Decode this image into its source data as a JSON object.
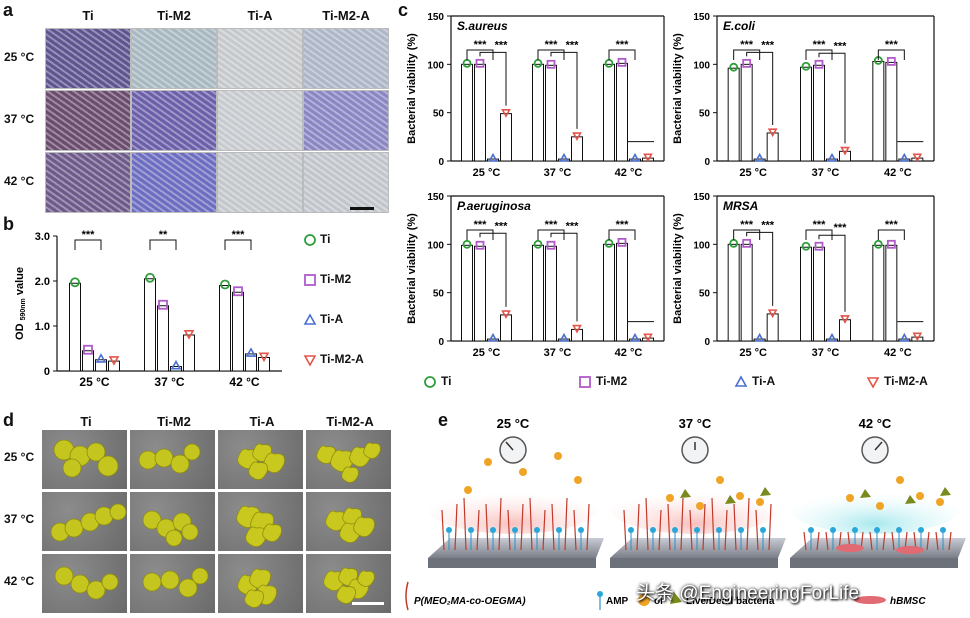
{
  "panels": {
    "a": "a",
    "b": "b",
    "c": "c",
    "d": "d",
    "e": "e"
  },
  "groups": [
    "Ti",
    "Ti-M2",
    "Ti-A",
    "Ti-M2-A"
  ],
  "temps": [
    "25 °C",
    "37 °C",
    "42 °C"
  ],
  "colors": {
    "Ti": "#2e9e3a",
    "Ti-M2": "#b15bc9",
    "Ti-A": "#4a6fd1",
    "Ti-M2-A": "#e2554a"
  },
  "chart_data": [
    {
      "id": "b",
      "type": "bar",
      "ylabel": "OD 590nm value",
      "ylim": [
        0,
        3
      ],
      "yticks": [
        "0",
        "1.0",
        "2.0",
        "3.0"
      ],
      "categories": [
        "25 °C",
        "37 °C",
        "42 °C"
      ],
      "series": [
        {
          "name": "Ti",
          "values": [
            1.95,
            2.05,
            1.9
          ]
        },
        {
          "name": "Ti-M2",
          "values": [
            0.45,
            1.45,
            1.75
          ]
        },
        {
          "name": "Ti-A",
          "values": [
            0.25,
            0.1,
            0.38
          ]
        },
        {
          "name": "Ti-M2-A",
          "values": [
            0.22,
            0.8,
            0.3
          ]
        }
      ],
      "sig": [
        "***",
        "**",
        "***",
        "***"
      ]
    },
    {
      "id": "c1",
      "title": "S.aureus",
      "type": "bar",
      "ylabel": "Bacterial viability (%)",
      "ylim": [
        0,
        150
      ],
      "yticks": [
        "0",
        "50",
        "100",
        "150"
      ],
      "categories": [
        "25 °C",
        "37 °C",
        "42 °C"
      ],
      "series": [
        {
          "name": "Ti",
          "values": [
            100,
            100,
            100
          ]
        },
        {
          "name": "Ti-M2",
          "values": [
            100,
            99,
            101
          ]
        },
        {
          "name": "Ti-A",
          "values": [
            2,
            2,
            2
          ]
        },
        {
          "name": "Ti-M2-A",
          "values": [
            49,
            25,
            3
          ]
        }
      ],
      "sig": [
        "***",
        "***",
        "***"
      ]
    },
    {
      "id": "c2",
      "title": "E.coli",
      "type": "bar",
      "ylabel": "Bacterial viability (%)",
      "ylim": [
        0,
        150
      ],
      "yticks": [
        "0",
        "50",
        "100",
        "150"
      ],
      "categories": [
        "25 °C",
        "37 °C",
        "42 °C"
      ],
      "series": [
        {
          "name": "Ti",
          "values": [
            96,
            97,
            103
          ]
        },
        {
          "name": "Ti-M2",
          "values": [
            100,
            99,
            102
          ]
        },
        {
          "name": "Ti-A",
          "values": [
            2,
            2,
            2
          ]
        },
        {
          "name": "Ti-M2-A",
          "values": [
            29,
            10,
            3
          ]
        }
      ],
      "sig": [
        "***",
        "***",
        "***"
      ]
    },
    {
      "id": "c3",
      "title": "P.aeruginosa",
      "type": "bar",
      "ylabel": "Bacterial viability (%)",
      "ylim": [
        0,
        150
      ],
      "yticks": [
        "0",
        "50",
        "100",
        "150"
      ],
      "categories": [
        "25 °C",
        "37 °C",
        "42 °C"
      ],
      "series": [
        {
          "name": "Ti",
          "values": [
            99,
            99,
            100
          ]
        },
        {
          "name": "Ti-M2",
          "values": [
            98,
            98,
            101
          ]
        },
        {
          "name": "Ti-A",
          "values": [
            2,
            2,
            2
          ]
        },
        {
          "name": "Ti-M2-A",
          "values": [
            27,
            12,
            3
          ]
        }
      ],
      "sig": [
        "***",
        "***",
        "***"
      ]
    },
    {
      "id": "c4",
      "title": "MRSA",
      "type": "bar",
      "ylabel": "Bacterial viability (%)",
      "ylim": [
        0,
        150
      ],
      "yticks": [
        "0",
        "50",
        "100",
        "150"
      ],
      "categories": [
        "25 °C",
        "37 °C",
        "42 °C"
      ],
      "series": [
        {
          "name": "Ti",
          "values": [
            100,
            97,
            99
          ]
        },
        {
          "name": "Ti-M2",
          "values": [
            100,
            97,
            99
          ]
        },
        {
          "name": "Ti-A",
          "values": [
            2,
            2,
            2
          ]
        },
        {
          "name": "Ti-M2-A",
          "values": [
            28,
            22,
            4
          ]
        }
      ],
      "sig": [
        "***",
        "***",
        "***"
      ]
    }
  ],
  "legend_b": [
    "Ti",
    "Ti-M2",
    "Ti-A",
    "Ti-M2-A"
  ],
  "legend_c": [
    "Ti",
    "Ti-M2",
    "Ti-A",
    "Ti-M2-A"
  ],
  "panel_e": {
    "temps": [
      "25 °C",
      "37 °C",
      "42 °C"
    ],
    "legend_polymer": "P(MEO₂MA-co-OEGMA)",
    "legend_amp": "AMP",
    "legend_or": "or",
    "legend_bacteria": "Live/Dead  bacteria",
    "legend_cell": "hBMSC"
  },
  "watermark": "头条 @EngineeringForLife"
}
